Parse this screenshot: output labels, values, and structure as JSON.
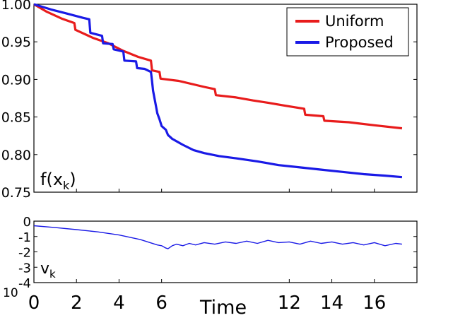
{
  "chart_data": [
    {
      "type": "line",
      "legend_position": "top-right",
      "ylabel": "f(x",
      "ylabel_subscript": "k",
      "ylabel_suffix": ")",
      "xlim": [
        0,
        18
      ],
      "ylim": [
        0.75,
        1.0
      ],
      "y_ticks": [
        "0.75",
        "0.80",
        "0.85",
        "0.90",
        "0.95",
        "1.00"
      ],
      "grid": false,
      "series": [
        {
          "name": "Uniform",
          "color": "#e81c1c",
          "points": [
            [
              0,
              1.0
            ],
            [
              0.6,
              0.99
            ],
            [
              1.3,
              0.981
            ],
            [
              1.9,
              0.975
            ],
            [
              1.95,
              0.966
            ],
            [
              2.8,
              0.955
            ],
            [
              3.5,
              0.948
            ],
            [
              4.2,
              0.938
            ],
            [
              4.9,
              0.93
            ],
            [
              5.5,
              0.925
            ],
            [
              5.55,
              0.912
            ],
            [
              5.9,
              0.91
            ],
            [
              5.95,
              0.901
            ],
            [
              6.8,
              0.898
            ],
            [
              8.0,
              0.89
            ],
            [
              8.5,
              0.887
            ],
            [
              8.55,
              0.879
            ],
            [
              9.5,
              0.876
            ],
            [
              10.3,
              0.872
            ],
            [
              11.0,
              0.869
            ],
            [
              11.8,
              0.865
            ],
            [
              12.7,
              0.861
            ],
            [
              12.75,
              0.853
            ],
            [
              13.6,
              0.851
            ],
            [
              13.65,
              0.845
            ],
            [
              14.8,
              0.843
            ],
            [
              16.0,
              0.839
            ],
            [
              17.3,
              0.835
            ]
          ]
        },
        {
          "name": "Proposed",
          "color": "#1a1ae6",
          "points": [
            [
              0,
              1.0
            ],
            [
              0.8,
              0.993
            ],
            [
              1.5,
              0.988
            ],
            [
              2.3,
              0.982
            ],
            [
              2.6,
              0.98
            ],
            [
              2.65,
              0.962
            ],
            [
              3.2,
              0.958
            ],
            [
              3.25,
              0.948
            ],
            [
              3.7,
              0.947
            ],
            [
              3.75,
              0.94
            ],
            [
              4.2,
              0.937
            ],
            [
              4.25,
              0.925
            ],
            [
              4.8,
              0.924
            ],
            [
              4.85,
              0.915
            ],
            [
              5.2,
              0.914
            ],
            [
              5.5,
              0.91
            ],
            [
              5.55,
              0.898
            ],
            [
              5.6,
              0.885
            ],
            [
              5.7,
              0.87
            ],
            [
              5.8,
              0.855
            ],
            [
              5.9,
              0.847
            ],
            [
              6.0,
              0.838
            ],
            [
              6.2,
              0.833
            ],
            [
              6.3,
              0.826
            ],
            [
              6.5,
              0.821
            ],
            [
              7.0,
              0.813
            ],
            [
              7.5,
              0.806
            ],
            [
              8.0,
              0.802
            ],
            [
              8.7,
              0.798
            ],
            [
              9.5,
              0.795
            ],
            [
              10.5,
              0.791
            ],
            [
              11.5,
              0.786
            ],
            [
              12.5,
              0.783
            ],
            [
              13.5,
              0.78
            ],
            [
              14.5,
              0.777
            ],
            [
              15.5,
              0.774
            ],
            [
              16.5,
              0.772
            ],
            [
              17.3,
              0.77
            ]
          ]
        }
      ]
    },
    {
      "type": "line",
      "ylabel": "v",
      "ylabel_subscript": "k",
      "xlabel": "Time",
      "x_ticks": [
        "0",
        "2",
        "4",
        "6",
        "12",
        "14",
        "16"
      ],
      "x_tick_values": [
        0,
        2,
        4,
        6,
        12,
        14,
        16
      ],
      "x_exponent_label": "10",
      "y_ticks": [
        "0",
        "-1",
        "-2",
        "-3",
        "-4"
      ],
      "xlim": [
        0,
        18
      ],
      "ylim": [
        -4,
        0
      ],
      "grid": false,
      "series": [
        {
          "color": "#1a1ae6",
          "points": [
            [
              0,
              -0.3
            ],
            [
              1,
              -0.42
            ],
            [
              2,
              -0.55
            ],
            [
              3,
              -0.7
            ],
            [
              4,
              -0.9
            ],
            [
              5,
              -1.2
            ],
            [
              5.8,
              -1.55
            ],
            [
              6.0,
              -1.6
            ],
            [
              6.2,
              -1.75
            ],
            [
              6.3,
              -1.8
            ],
            [
              6.5,
              -1.6
            ],
            [
              6.7,
              -1.5
            ],
            [
              7.0,
              -1.6
            ],
            [
              7.3,
              -1.45
            ],
            [
              7.6,
              -1.55
            ],
            [
              8.0,
              -1.4
            ],
            [
              8.5,
              -1.5
            ],
            [
              9.0,
              -1.35
            ],
            [
              9.5,
              -1.45
            ],
            [
              10.0,
              -1.3
            ],
            [
              10.5,
              -1.45
            ],
            [
              11.0,
              -1.25
            ],
            [
              11.5,
              -1.4
            ],
            [
              12.0,
              -1.35
            ],
            [
              12.5,
              -1.5
            ],
            [
              13.0,
              -1.3
            ],
            [
              13.5,
              -1.45
            ],
            [
              14.0,
              -1.35
            ],
            [
              14.5,
              -1.5
            ],
            [
              15.0,
              -1.4
            ],
            [
              15.5,
              -1.55
            ],
            [
              16.0,
              -1.4
            ],
            [
              16.5,
              -1.6
            ],
            [
              17.0,
              -1.45
            ],
            [
              17.3,
              -1.5
            ]
          ]
        }
      ]
    }
  ]
}
